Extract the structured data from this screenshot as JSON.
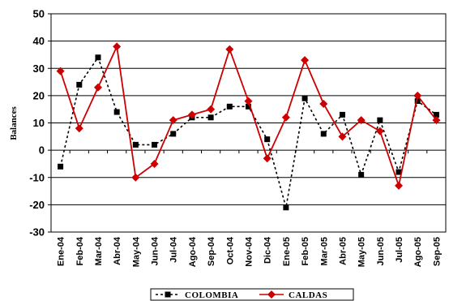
{
  "chart_data": {
    "type": "line",
    "title": "",
    "xlabel": "",
    "ylabel": "Balances",
    "ylim": [
      -30,
      50
    ],
    "yticks": [
      -30,
      -20,
      -10,
      0,
      10,
      20,
      30,
      40,
      50
    ],
    "grid": "horizontal",
    "legend": "bottom",
    "categories": [
      "Ene-04",
      "Feb-04",
      "Mar-04",
      "Abr-04",
      "May-04",
      "Jun-04",
      "Jul-04",
      "Ago-04",
      "Sep-04",
      "Oct-04",
      "Nov-04",
      "Dic-04",
      "Ene-05",
      "Feb-05",
      "Mar-05",
      "Abr-05",
      "May-05",
      "Jun-05",
      "Jul-05",
      "Ago-05",
      "Sep-05"
    ],
    "series": [
      {
        "name": "COLOMBIA",
        "color": "#000000",
        "style": "dashed",
        "marker": "square",
        "values": [
          -6,
          24,
          34,
          14,
          2,
          2,
          6,
          12,
          12,
          16,
          16,
          4,
          -21,
          19,
          6,
          13,
          -9,
          11,
          -8,
          18,
          13
        ]
      },
      {
        "name": "CALDAS",
        "color": "#cc0000",
        "style": "solid",
        "marker": "diamond",
        "values": [
          29,
          8,
          23,
          38,
          -10,
          -5,
          11,
          13,
          15,
          37,
          18,
          -3,
          12,
          33,
          17,
          5,
          11,
          7,
          -13,
          20,
          11
        ]
      }
    ]
  }
}
